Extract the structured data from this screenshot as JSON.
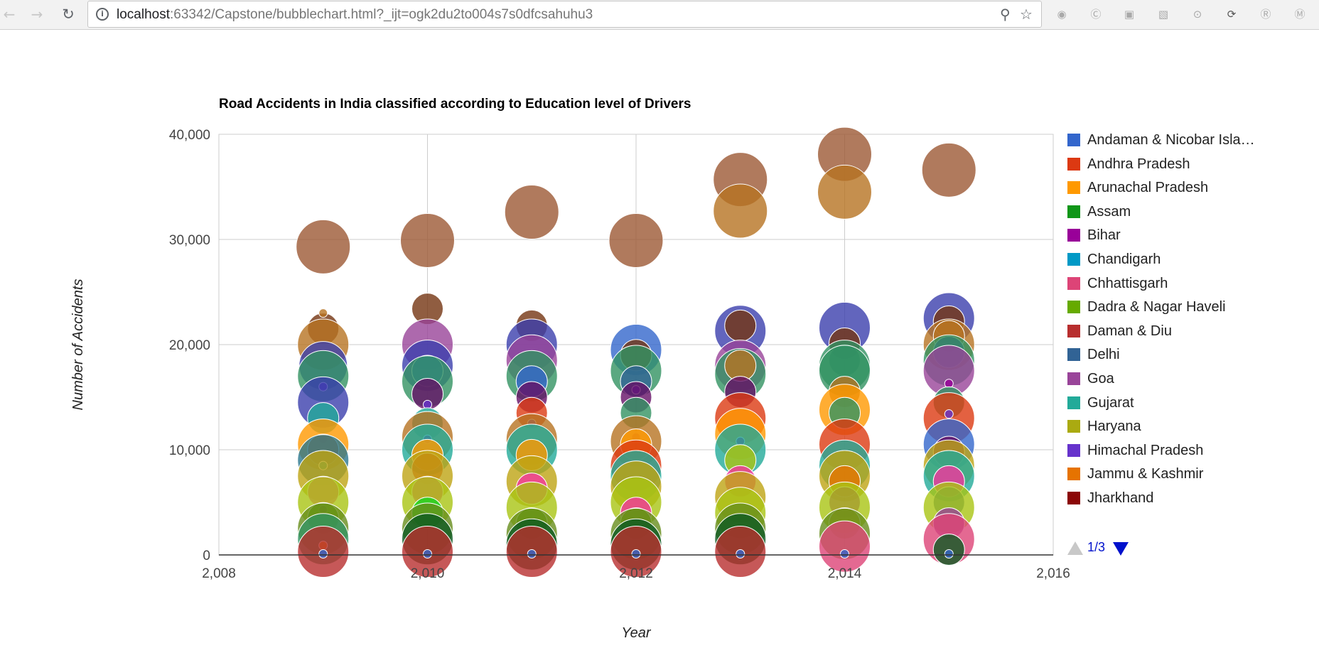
{
  "browser": {
    "url_host": "localhost",
    "url_path": ":63342/Capstone/bubblechart.html?_ijt=ogk2du2to004s7s0dfcsahuhu3"
  },
  "colors": {
    "accent_blue": "#0011cc",
    "grid": "#cccccc",
    "series": [
      "#3366cc",
      "#dc3912",
      "#ff9900",
      "#109618",
      "#990099",
      "#0099c6",
      "#dd4477",
      "#66aa00",
      "#b82e2e",
      "#316395",
      "#994499",
      "#22aa99",
      "#aaaa11",
      "#6633cc",
      "#e67300",
      "#8b0707",
      "#651067",
      "#329262",
      "#5574a6",
      "#3b3eac",
      "#b77322",
      "#16d620",
      "#b91383",
      "#f4359e",
      "#9c5935",
      "#a9c413",
      "#2a778d",
      "#668d1c",
      "#bea413",
      "#0c5922",
      "#743411"
    ]
  },
  "legend": {
    "items": [
      {
        "label": "Andaman & Nicobar Isla…",
        "color": "#3366cc"
      },
      {
        "label": "Andhra Pradesh",
        "color": "#dc3912"
      },
      {
        "label": "Arunachal Pradesh",
        "color": "#ff9900"
      },
      {
        "label": "Assam",
        "color": "#109618"
      },
      {
        "label": "Bihar",
        "color": "#990099"
      },
      {
        "label": "Chandigarh",
        "color": "#0099c6"
      },
      {
        "label": "Chhattisgarh",
        "color": "#dd4477"
      },
      {
        "label": "Dadra & Nagar Haveli",
        "color": "#66aa00"
      },
      {
        "label": "Daman & Diu",
        "color": "#b82e2e"
      },
      {
        "label": "Delhi",
        "color": "#316395"
      },
      {
        "label": "Goa",
        "color": "#994499"
      },
      {
        "label": "Gujarat",
        "color": "#22aa99"
      },
      {
        "label": "Haryana",
        "color": "#aaaa11"
      },
      {
        "label": "Himachal Pradesh",
        "color": "#6633cc"
      },
      {
        "label": "Jammu & Kashmir",
        "color": "#e67300"
      },
      {
        "label": "Jharkhand",
        "color": "#8b0707"
      }
    ],
    "page": "1/3"
  },
  "chart_data": {
    "type": "scatter",
    "subtype": "bubble",
    "title": "Road Accidents in India classified according to Education level of Drivers",
    "xlabel": "Year",
    "ylabel": "Number of Accidents",
    "xlim": [
      2008,
      2016
    ],
    "ylim": [
      0,
      40000
    ],
    "x_ticks": [
      "2,008",
      "2,010",
      "2,012",
      "2,014",
      "2,016"
    ],
    "y_ticks": [
      "0",
      "10,000",
      "20,000",
      "30,000",
      "40,000"
    ],
    "grid": true,
    "legend_position": "right",
    "points": [
      {
        "x": 2009,
        "y": 29300,
        "c": "#9c5935",
        "r": 38
      },
      {
        "x": 2009,
        "y": 21500,
        "c": "#743411",
        "r": 22
      },
      {
        "x": 2009,
        "y": 23000,
        "c": "#b77322",
        "r": 6
      },
      {
        "x": 2009,
        "y": 20000,
        "c": "#b77322",
        "r": 36
      },
      {
        "x": 2009,
        "y": 18000,
        "c": "#3b3eac",
        "r": 34
      },
      {
        "x": 2009,
        "y": 17000,
        "c": "#329262",
        "r": 36
      },
      {
        "x": 2009,
        "y": 16000,
        "c": "#6633cc",
        "r": 6
      },
      {
        "x": 2009,
        "y": 14500,
        "c": "#3b3eac",
        "r": 36
      },
      {
        "x": 2009,
        "y": 13000,
        "c": "#22aa99",
        "r": 22
      },
      {
        "x": 2009,
        "y": 11000,
        "c": "#990099",
        "r": 6
      },
      {
        "x": 2009,
        "y": 10500,
        "c": "#ff9900",
        "r": 36
      },
      {
        "x": 2009,
        "y": 10000,
        "c": "#e67300",
        "r": 22
      },
      {
        "x": 2009,
        "y": 9000,
        "c": "#2a778d",
        "r": 36
      },
      {
        "x": 2009,
        "y": 8500,
        "c": "#22aa99",
        "r": 6
      },
      {
        "x": 2009,
        "y": 7500,
        "c": "#bea413",
        "r": 36
      },
      {
        "x": 2009,
        "y": 6000,
        "c": "#f4359e",
        "r": 22
      },
      {
        "x": 2009,
        "y": 5000,
        "c": "#a9c413",
        "r": 36
      },
      {
        "x": 2009,
        "y": 4300,
        "c": "#990099",
        "r": 6
      },
      {
        "x": 2009,
        "y": 3500,
        "c": "#66aa00",
        "r": 22
      },
      {
        "x": 2009,
        "y": 2500,
        "c": "#668d1c",
        "r": 36
      },
      {
        "x": 2009,
        "y": 1500,
        "c": "#329262",
        "r": 36
      },
      {
        "x": 2009,
        "y": 900,
        "c": "#ff9900",
        "r": 6
      },
      {
        "x": 2009,
        "y": 300,
        "c": "#b82e2e",
        "r": 36
      },
      {
        "x": 2009,
        "y": 100,
        "c": "#3366cc",
        "r": 6
      },
      {
        "x": 2010,
        "y": 29900,
        "c": "#9c5935",
        "r": 38
      },
      {
        "x": 2010,
        "y": 23400,
        "c": "#743411",
        "r": 22
      },
      {
        "x": 2010,
        "y": 20000,
        "c": "#994499",
        "r": 36
      },
      {
        "x": 2010,
        "y": 18000,
        "c": "#3b3eac",
        "r": 36
      },
      {
        "x": 2010,
        "y": 17500,
        "c": "#3366cc",
        "r": 22
      },
      {
        "x": 2010,
        "y": 16500,
        "c": "#329262",
        "r": 36
      },
      {
        "x": 2010,
        "y": 15300,
        "c": "#651067",
        "r": 22
      },
      {
        "x": 2010,
        "y": 14300,
        "c": "#6633cc",
        "r": 6
      },
      {
        "x": 2010,
        "y": 12500,
        "c": "#22aa99",
        "r": 22
      },
      {
        "x": 2010,
        "y": 11200,
        "c": "#b77322",
        "r": 36
      },
      {
        "x": 2010,
        "y": 11000,
        "c": "#990099",
        "r": 6
      },
      {
        "x": 2010,
        "y": 10000,
        "c": "#22aa99",
        "r": 36
      },
      {
        "x": 2010,
        "y": 9500,
        "c": "#ff9900",
        "r": 22
      },
      {
        "x": 2010,
        "y": 8200,
        "c": "#dc3912",
        "r": 22
      },
      {
        "x": 2010,
        "y": 7500,
        "c": "#bea413",
        "r": 36
      },
      {
        "x": 2010,
        "y": 6000,
        "c": "#f4359e",
        "r": 22
      },
      {
        "x": 2010,
        "y": 5000,
        "c": "#a9c413",
        "r": 36
      },
      {
        "x": 2010,
        "y": 4000,
        "c": "#16d620",
        "r": 22
      },
      {
        "x": 2010,
        "y": 2500,
        "c": "#668d1c",
        "r": 36
      },
      {
        "x": 2010,
        "y": 1500,
        "c": "#0c5922",
        "r": 36
      },
      {
        "x": 2010,
        "y": 300,
        "c": "#b82e2e",
        "r": 36
      },
      {
        "x": 2010,
        "y": 100,
        "c": "#3366cc",
        "r": 6
      },
      {
        "x": 2011,
        "y": 32600,
        "c": "#9c5935",
        "r": 38
      },
      {
        "x": 2011,
        "y": 21800,
        "c": "#743411",
        "r": 22
      },
      {
        "x": 2011,
        "y": 20000,
        "c": "#3b3eac",
        "r": 36
      },
      {
        "x": 2011,
        "y": 18500,
        "c": "#994499",
        "r": 36
      },
      {
        "x": 2011,
        "y": 17000,
        "c": "#329262",
        "r": 36
      },
      {
        "x": 2011,
        "y": 16500,
        "c": "#3366cc",
        "r": 22
      },
      {
        "x": 2011,
        "y": 15000,
        "c": "#651067",
        "r": 22
      },
      {
        "x": 2011,
        "y": 13500,
        "c": "#dc3912",
        "r": 22
      },
      {
        "x": 2011,
        "y": 12500,
        "c": "#6633cc",
        "r": 6
      },
      {
        "x": 2011,
        "y": 11000,
        "c": "#b77322",
        "r": 36
      },
      {
        "x": 2011,
        "y": 10000,
        "c": "#22aa99",
        "r": 36
      },
      {
        "x": 2011,
        "y": 9500,
        "c": "#ff9900",
        "r": 22
      },
      {
        "x": 2011,
        "y": 7000,
        "c": "#bea413",
        "r": 36
      },
      {
        "x": 2011,
        "y": 6300,
        "c": "#f4359e",
        "r": 22
      },
      {
        "x": 2011,
        "y": 4500,
        "c": "#a9c413",
        "r": 36
      },
      {
        "x": 2011,
        "y": 3000,
        "c": "#66aa00",
        "r": 22
      },
      {
        "x": 2011,
        "y": 2000,
        "c": "#668d1c",
        "r": 36
      },
      {
        "x": 2011,
        "y": 1000,
        "c": "#0c5922",
        "r": 36
      },
      {
        "x": 2011,
        "y": 300,
        "c": "#b82e2e",
        "r": 36
      },
      {
        "x": 2011,
        "y": 100,
        "c": "#3366cc",
        "r": 6
      },
      {
        "x": 2012,
        "y": 29900,
        "c": "#9c5935",
        "r": 38
      },
      {
        "x": 2012,
        "y": 19500,
        "c": "#3366cc",
        "r": 36
      },
      {
        "x": 2012,
        "y": 19000,
        "c": "#743411",
        "r": 22
      },
      {
        "x": 2012,
        "y": 17500,
        "c": "#329262",
        "r": 36
      },
      {
        "x": 2012,
        "y": 16500,
        "c": "#316395",
        "r": 22
      },
      {
        "x": 2012,
        "y": 15700,
        "c": "#6633cc",
        "r": 6
      },
      {
        "x": 2012,
        "y": 15000,
        "c": "#651067",
        "r": 22
      },
      {
        "x": 2012,
        "y": 13500,
        "c": "#329262",
        "r": 22
      },
      {
        "x": 2012,
        "y": 11200,
        "c": "#990099",
        "r": 6
      },
      {
        "x": 2012,
        "y": 10800,
        "c": "#b77322",
        "r": 36
      },
      {
        "x": 2012,
        "y": 10500,
        "c": "#ff9900",
        "r": 22
      },
      {
        "x": 2012,
        "y": 8500,
        "c": "#dc3912",
        "r": 36
      },
      {
        "x": 2012,
        "y": 7500,
        "c": "#22aa99",
        "r": 36
      },
      {
        "x": 2012,
        "y": 6500,
        "c": "#bea413",
        "r": 36
      },
      {
        "x": 2012,
        "y": 5000,
        "c": "#a9c413",
        "r": 36
      },
      {
        "x": 2012,
        "y": 4000,
        "c": "#f4359e",
        "r": 22
      },
      {
        "x": 2012,
        "y": 3000,
        "c": "#66aa00",
        "r": 22
      },
      {
        "x": 2012,
        "y": 2000,
        "c": "#668d1c",
        "r": 36
      },
      {
        "x": 2012,
        "y": 1000,
        "c": "#0c5922",
        "r": 36
      },
      {
        "x": 2012,
        "y": 300,
        "c": "#b82e2e",
        "r": 36
      },
      {
        "x": 2012,
        "y": 100,
        "c": "#3366cc",
        "r": 6
      },
      {
        "x": 2013,
        "y": 35700,
        "c": "#9c5935",
        "r": 38
      },
      {
        "x": 2013,
        "y": 32700,
        "c": "#b77322",
        "r": 38
      },
      {
        "x": 2013,
        "y": 21300,
        "c": "#3b3eac",
        "r": 36
      },
      {
        "x": 2013,
        "y": 21800,
        "c": "#743411",
        "r": 22
      },
      {
        "x": 2013,
        "y": 18000,
        "c": "#994499",
        "r": 36
      },
      {
        "x": 2013,
        "y": 17200,
        "c": "#329262",
        "r": 36
      },
      {
        "x": 2013,
        "y": 18000,
        "c": "#b77322",
        "r": 22
      },
      {
        "x": 2013,
        "y": 15500,
        "c": "#651067",
        "r": 22
      },
      {
        "x": 2013,
        "y": 13000,
        "c": "#dc3912",
        "r": 36
      },
      {
        "x": 2013,
        "y": 11500,
        "c": "#ff9900",
        "r": 36
      },
      {
        "x": 2013,
        "y": 10800,
        "c": "#990099",
        "r": 6
      },
      {
        "x": 2013,
        "y": 10000,
        "c": "#22aa99",
        "r": 36
      },
      {
        "x": 2013,
        "y": 9000,
        "c": "#a9c413",
        "r": 22
      },
      {
        "x": 2013,
        "y": 7000,
        "c": "#f4359e",
        "r": 22
      },
      {
        "x": 2013,
        "y": 5500,
        "c": "#bea413",
        "r": 36
      },
      {
        "x": 2013,
        "y": 4000,
        "c": "#a9c413",
        "r": 36
      },
      {
        "x": 2013,
        "y": 2500,
        "c": "#668d1c",
        "r": 36
      },
      {
        "x": 2013,
        "y": 1500,
        "c": "#0c5922",
        "r": 36
      },
      {
        "x": 2013,
        "y": 300,
        "c": "#b82e2e",
        "r": 36
      },
      {
        "x": 2013,
        "y": 100,
        "c": "#3366cc",
        "r": 6
      },
      {
        "x": 2014,
        "y": 38100,
        "c": "#9c5935",
        "r": 38
      },
      {
        "x": 2014,
        "y": 34500,
        "c": "#b77322",
        "r": 38
      },
      {
        "x": 2014,
        "y": 21600,
        "c": "#3b3eac",
        "r": 36
      },
      {
        "x": 2014,
        "y": 20100,
        "c": "#743411",
        "r": 22
      },
      {
        "x": 2014,
        "y": 18500,
        "c": "#316395",
        "r": 22
      },
      {
        "x": 2014,
        "y": 18000,
        "c": "#329262",
        "r": 36
      },
      {
        "x": 2014,
        "y": 17500,
        "c": "#329262",
        "r": 36
      },
      {
        "x": 2014,
        "y": 15500,
        "c": "#b77322",
        "r": 22
      },
      {
        "x": 2014,
        "y": 13800,
        "c": "#ff9900",
        "r": 36
      },
      {
        "x": 2014,
        "y": 13500,
        "c": "#329262",
        "r": 22
      },
      {
        "x": 2014,
        "y": 10500,
        "c": "#dc3912",
        "r": 36
      },
      {
        "x": 2014,
        "y": 8500,
        "c": "#22aa99",
        "r": 36
      },
      {
        "x": 2014,
        "y": 7500,
        "c": "#bea413",
        "r": 36
      },
      {
        "x": 2014,
        "y": 7000,
        "c": "#e67300",
        "r": 22
      },
      {
        "x": 2014,
        "y": 5000,
        "c": "#990099",
        "r": 22
      },
      {
        "x": 2014,
        "y": 4500,
        "c": "#a9c413",
        "r": 36
      },
      {
        "x": 2014,
        "y": 3000,
        "c": "#bea413",
        "r": 22
      },
      {
        "x": 2014,
        "y": 2000,
        "c": "#668d1c",
        "r": 36
      },
      {
        "x": 2014,
        "y": 800,
        "c": "#dd4477",
        "r": 36
      },
      {
        "x": 2014,
        "y": 100,
        "c": "#3366cc",
        "r": 6
      },
      {
        "x": 2015,
        "y": 36600,
        "c": "#9c5935",
        "r": 38
      },
      {
        "x": 2015,
        "y": 22500,
        "c": "#3b3eac",
        "r": 36
      },
      {
        "x": 2015,
        "y": 22200,
        "c": "#743411",
        "r": 22
      },
      {
        "x": 2015,
        "y": 20000,
        "c": "#b77322",
        "r": 36
      },
      {
        "x": 2015,
        "y": 20800,
        "c": "#b77322",
        "r": 22
      },
      {
        "x": 2015,
        "y": 19300,
        "c": "#3b3eac",
        "r": 22
      },
      {
        "x": 2015,
        "y": 18500,
        "c": "#329262",
        "r": 36
      },
      {
        "x": 2015,
        "y": 17500,
        "c": "#994499",
        "r": 36
      },
      {
        "x": 2015,
        "y": 16300,
        "c": "#990099",
        "r": 6
      },
      {
        "x": 2015,
        "y": 14500,
        "c": "#329262",
        "r": 22
      },
      {
        "x": 2015,
        "y": 13000,
        "c": "#dc3912",
        "r": 36
      },
      {
        "x": 2015,
        "y": 13400,
        "c": "#6633cc",
        "r": 6
      },
      {
        "x": 2015,
        "y": 10500,
        "c": "#3366cc",
        "r": 36
      },
      {
        "x": 2015,
        "y": 9800,
        "c": "#651067",
        "r": 22
      },
      {
        "x": 2015,
        "y": 8500,
        "c": "#bea413",
        "r": 36
      },
      {
        "x": 2015,
        "y": 7500,
        "c": "#22aa99",
        "r": 36
      },
      {
        "x": 2015,
        "y": 7000,
        "c": "#f4359e",
        "r": 22
      },
      {
        "x": 2015,
        "y": 5000,
        "c": "#316395",
        "r": 22
      },
      {
        "x": 2015,
        "y": 4500,
        "c": "#a9c413",
        "r": 36
      },
      {
        "x": 2015,
        "y": 3000,
        "c": "#994499",
        "r": 22
      },
      {
        "x": 2015,
        "y": 1500,
        "c": "#dd4477",
        "r": 36
      },
      {
        "x": 2015,
        "y": 500,
        "c": "#0c5922",
        "r": 22
      },
      {
        "x": 2015,
        "y": 100,
        "c": "#3366cc",
        "r": 6
      }
    ]
  }
}
